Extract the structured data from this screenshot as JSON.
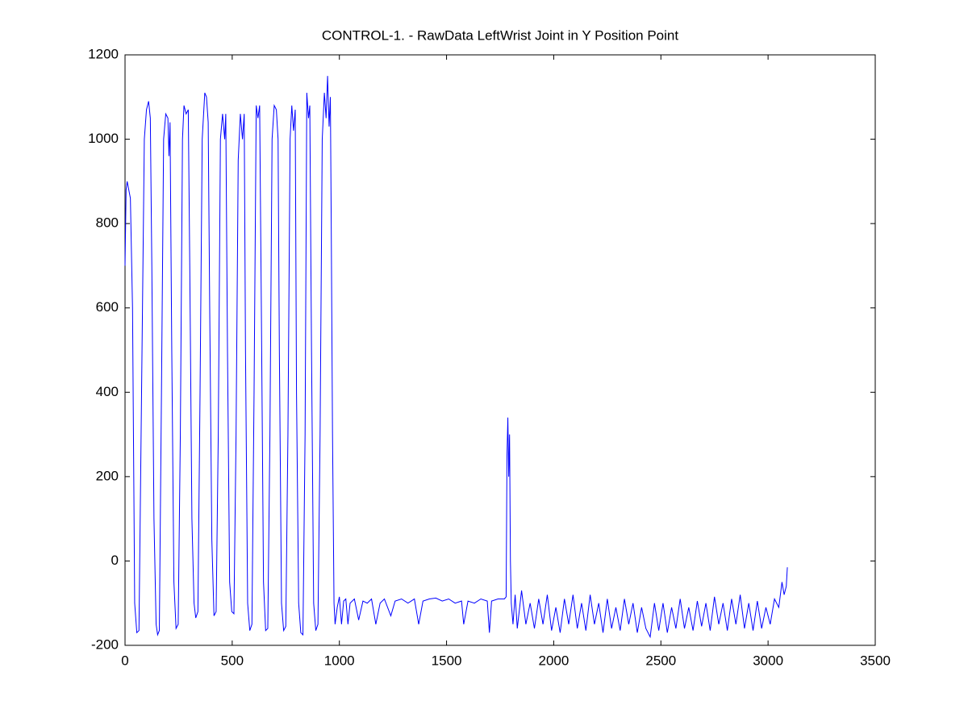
{
  "chart_data": {
    "type": "line",
    "title": "CONTROL-1. - RawData LeftWrist Joint in Y Position Point",
    "color": "#0000ff",
    "xlim": [
      0,
      3500
    ],
    "xticks": [
      0,
      500,
      1000,
      1500,
      2000,
      2500,
      3000,
      3500
    ],
    "ylim": [
      -200,
      1200
    ],
    "yticks": [
      -200,
      0,
      200,
      400,
      600,
      800,
      1000,
      1200
    ],
    "grid": false,
    "x": [
      0,
      5,
      10,
      25,
      35,
      45,
      55,
      65,
      75,
      90,
      100,
      110,
      118,
      125,
      135,
      145,
      152,
      160,
      170,
      180,
      190,
      200,
      205,
      210,
      218,
      228,
      238,
      248,
      258,
      268,
      275,
      285,
      295,
      302,
      312,
      322,
      330,
      340,
      350,
      360,
      372,
      380,
      388,
      395,
      405,
      415,
      425,
      435,
      445,
      455,
      465,
      470,
      478,
      488,
      498,
      508,
      518,
      528,
      538,
      548,
      556,
      562,
      572,
      582,
      592,
      602,
      612,
      620,
      628,
      636,
      646,
      656,
      666,
      676,
      686,
      696,
      706,
      714,
      720,
      730,
      740,
      750,
      760,
      770,
      778,
      786,
      794,
      800,
      810,
      820,
      830,
      840,
      848,
      856,
      862,
      870,
      880,
      890,
      900,
      910,
      920,
      930,
      938,
      945,
      952,
      958,
      962,
      968,
      975,
      980,
      990,
      1000,
      1010,
      1020,
      1030,
      1040,
      1050,
      1070,
      1090,
      1110,
      1130,
      1150,
      1170,
      1190,
      1210,
      1240,
      1260,
      1290,
      1320,
      1350,
      1370,
      1390,
      1420,
      1450,
      1480,
      1510,
      1540,
      1570,
      1580,
      1600,
      1630,
      1660,
      1690,
      1700,
      1710,
      1740,
      1770,
      1778,
      1782,
      1786,
      1790,
      1794,
      1798,
      1802,
      1810,
      1820,
      1830,
      1850,
      1870,
      1890,
      1910,
      1930,
      1950,
      1970,
      1990,
      2010,
      2030,
      2050,
      2070,
      2090,
      2110,
      2130,
      2150,
      2170,
      2190,
      2210,
      2230,
      2250,
      2270,
      2290,
      2310,
      2330,
      2350,
      2370,
      2390,
      2410,
      2430,
      2450,
      2470,
      2490,
      2510,
      2530,
      2550,
      2570,
      2590,
      2610,
      2630,
      2650,
      2670,
      2690,
      2710,
      2730,
      2750,
      2770,
      2790,
      2810,
      2830,
      2850,
      2870,
      2890,
      2910,
      2930,
      2950,
      2970,
      2990,
      3010,
      3030,
      3050,
      3065,
      3075,
      3085,
      3090
    ],
    "values": [
      700,
      880,
      900,
      860,
      600,
      -100,
      -170,
      -165,
      300,
      1000,
      1070,
      1090,
      1050,
      700,
      100,
      -150,
      -175,
      -165,
      400,
      1000,
      1060,
      1050,
      960,
      1040,
      500,
      -50,
      -160,
      -150,
      300,
      1000,
      1080,
      1060,
      1070,
      700,
      100,
      -100,
      -135,
      -120,
      400,
      1000,
      1110,
      1100,
      1040,
      600,
      50,
      -130,
      -120,
      300,
      1000,
      1060,
      1000,
      1060,
      500,
      -50,
      -120,
      -125,
      300,
      950,
      1060,
      1000,
      1060,
      500,
      -100,
      -165,
      -150,
      400,
      1080,
      1050,
      1080,
      600,
      -50,
      -165,
      -160,
      300,
      1000,
      1080,
      1070,
      1000,
      500,
      -100,
      -165,
      -155,
      300,
      1000,
      1080,
      1020,
      1070,
      400,
      -100,
      -170,
      -175,
      300,
      1110,
      1050,
      1080,
      500,
      -100,
      -165,
      -150,
      300,
      1000,
      1110,
      1050,
      1150,
      1030,
      1100,
      800,
      300,
      -100,
      -150,
      -110,
      -85,
      -150,
      -95,
      -90,
      -150,
      -100,
      -90,
      -140,
      -95,
      -100,
      -90,
      -150,
      -100,
      -90,
      -130,
      -95,
      -90,
      -100,
      -90,
      -150,
      -95,
      -90,
      -88,
      -95,
      -90,
      -100,
      -95,
      -150,
      -95,
      -100,
      -90,
      -95,
      -170,
      -95,
      -90,
      -90,
      -85,
      250,
      340,
      200,
      300,
      0,
      -100,
      -150,
      -80,
      -160,
      -70,
      -150,
      -100,
      -160,
      -90,
      -150,
      -80,
      -165,
      -110,
      -170,
      -90,
      -150,
      -80,
      -160,
      -100,
      -165,
      -80,
      -150,
      -100,
      -170,
      -90,
      -160,
      -110,
      -165,
      -90,
      -150,
      -100,
      -170,
      -110,
      -160,
      -180,
      -100,
      -165,
      -100,
      -170,
      -110,
      -160,
      -90,
      -160,
      -110,
      -165,
      -95,
      -155,
      -100,
      -165,
      -85,
      -150,
      -100,
      -165,
      -90,
      -150,
      -80,
      -160,
      -100,
      -165,
      -95,
      -160,
      -110,
      -150,
      -90,
      -110,
      -50,
      -80,
      -60,
      -15
    ]
  }
}
